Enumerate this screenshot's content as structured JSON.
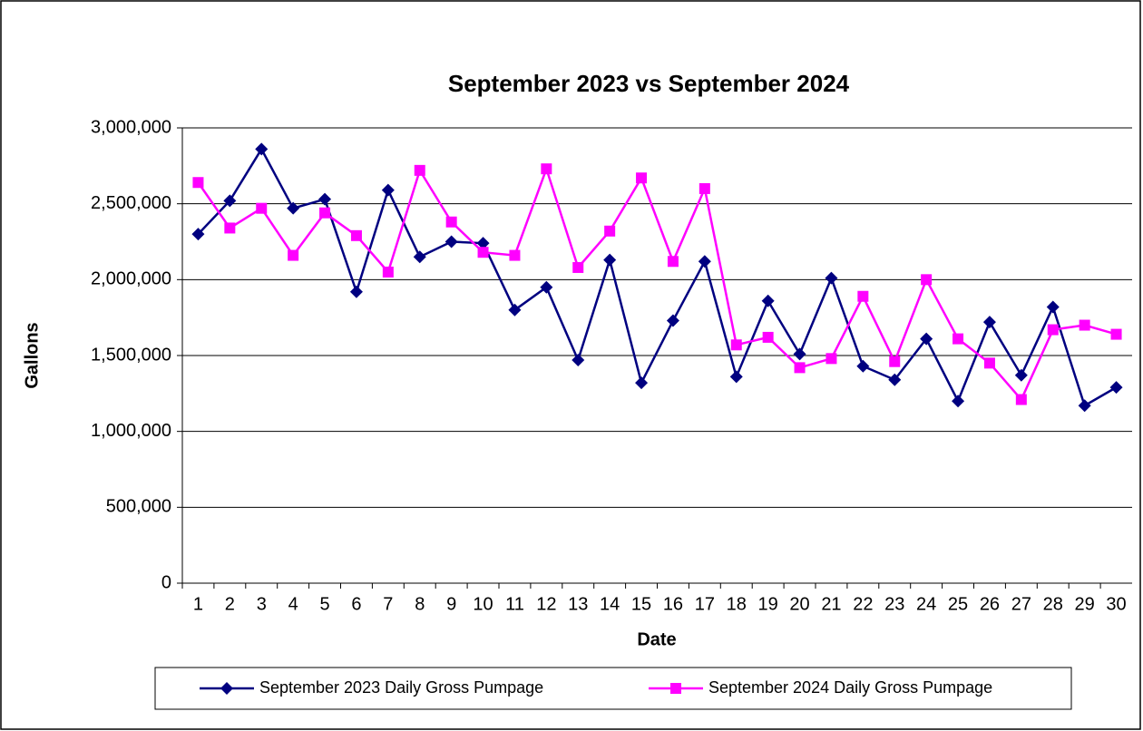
{
  "chart_data": {
    "type": "line",
    "title": "September 2023 vs September 2024",
    "x_label": "Date",
    "y_label": "Gallons",
    "categories": [
      "1",
      "2",
      "3",
      "4",
      "5",
      "6",
      "7",
      "8",
      "9",
      "10",
      "11",
      "12",
      "13",
      "14",
      "15",
      "16",
      "17",
      "18",
      "19",
      "20",
      "21",
      "22",
      "23",
      "24",
      "25",
      "26",
      "27",
      "28",
      "29",
      "30"
    ],
    "series": [
      {
        "name": "September 2023 Daily Gross Pumpage",
        "color": "#000080",
        "marker": "diamond",
        "values": [
          2300000,
          2520000,
          2860000,
          2470000,
          2530000,
          1920000,
          2590000,
          2150000,
          2250000,
          2240000,
          1800000,
          1950000,
          1470000,
          2130000,
          1320000,
          1730000,
          2120000,
          1360000,
          1860000,
          1510000,
          2010000,
          1430000,
          1340000,
          1610000,
          1200000,
          1720000,
          1370000,
          1820000,
          1170000,
          1290000
        ]
      },
      {
        "name": "September 2024 Daily Gross Pumpage",
        "color": "#ff00ff",
        "marker": "square",
        "values": [
          2640000,
          2340000,
          2470000,
          2160000,
          2440000,
          2290000,
          2050000,
          2720000,
          2380000,
          2180000,
          2160000,
          2730000,
          2080000,
          2320000,
          2670000,
          2120000,
          2600000,
          1570000,
          1620000,
          1420000,
          1480000,
          1890000,
          1460000,
          2000000,
          1610000,
          1450000,
          1210000,
          1670000,
          1700000,
          1640000
        ]
      }
    ],
    "ylim": [
      0,
      3000000
    ],
    "yticks": [
      0,
      {
        "value": 500000,
        "label": "500,000"
      },
      {
        "value": 1000000,
        "label": "1,000,000"
      },
      {
        "value": 1500000,
        "label": "1,500,000"
      },
      {
        "value": 2000000,
        "label": "2,000,000"
      },
      {
        "value": 2500000,
        "label": "2,500,000"
      },
      {
        "value": 3000000,
        "label": "3,000,000"
      }
    ],
    "grid": true,
    "legend": "bottom"
  }
}
